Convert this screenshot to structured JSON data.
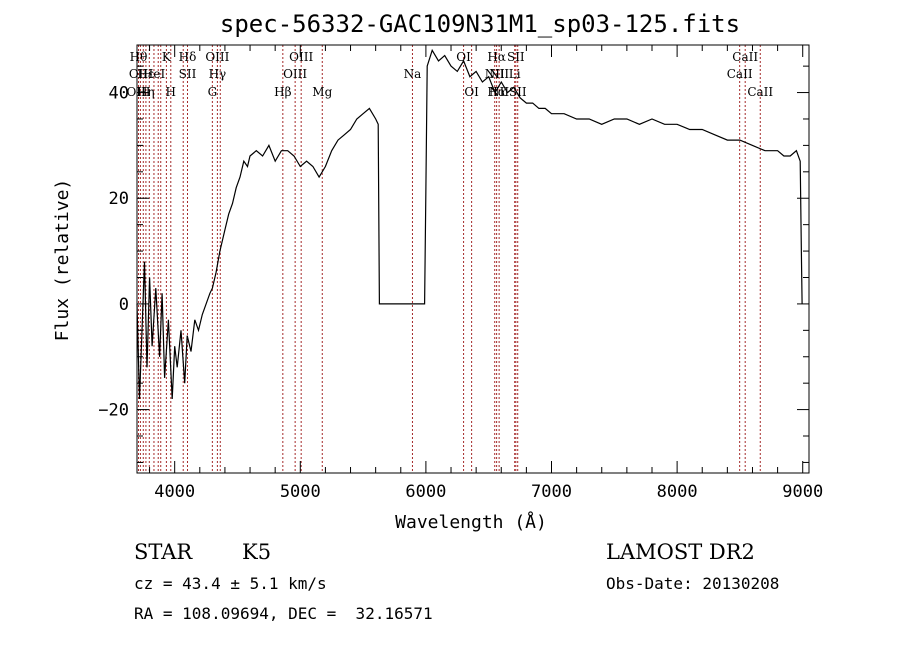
{
  "header": {
    "title": "spec-56332-GAC109N31M1_sp03-125.fits"
  },
  "info": {
    "class": "STAR",
    "subclass": "K5",
    "survey": "LAMOST DR2",
    "cz": "cz = 43.4 ± 5.1 km/s",
    "obs_date": "Obs-Date: 20130208",
    "coords": "RA = 108.09694, DEC =  32.16571"
  },
  "colors": {
    "spectrum": "#000000",
    "line_markers": "#a52a2a",
    "axes": "#000000"
  },
  "chart_data": {
    "type": "line",
    "title": "spec-56332-GAC109N31M1_sp03-125.fits",
    "xlabel": "Wavelength (Å)",
    "ylabel": "Flux (relative)",
    "xlim": [
      3700,
      9050
    ],
    "ylim": [
      -32,
      49
    ],
    "xticks": [
      4000,
      5000,
      6000,
      7000,
      8000,
      9000
    ],
    "yticks": [
      -20,
      0,
      20,
      40
    ],
    "series": [
      {
        "points": [
          [
            3700,
            0
          ],
          [
            3720,
            -18
          ],
          [
            3740,
            -5
          ],
          [
            3760,
            8
          ],
          [
            3780,
            -12
          ],
          [
            3800,
            5
          ],
          [
            3820,
            -8
          ],
          [
            3850,
            3
          ],
          [
            3880,
            -10
          ],
          [
            3900,
            2
          ],
          [
            3920,
            -14
          ],
          [
            3950,
            -3
          ],
          [
            3980,
            -18
          ],
          [
            4000,
            -8
          ],
          [
            4020,
            -12
          ],
          [
            4050,
            -5
          ],
          [
            4080,
            -15
          ],
          [
            4100,
            -6
          ],
          [
            4130,
            -9
          ],
          [
            4160,
            -3
          ],
          [
            4190,
            -5
          ],
          [
            4220,
            -2
          ],
          [
            4250,
            0
          ],
          [
            4280,
            2
          ],
          [
            4300,
            3
          ],
          [
            4330,
            6
          ],
          [
            4360,
            10
          ],
          [
            4400,
            14
          ],
          [
            4430,
            17
          ],
          [
            4460,
            19
          ],
          [
            4490,
            22
          ],
          [
            4520,
            24
          ],
          [
            4550,
            27
          ],
          [
            4580,
            26
          ],
          [
            4600,
            28
          ],
          [
            4650,
            29
          ],
          [
            4700,
            28
          ],
          [
            4750,
            30
          ],
          [
            4800,
            27
          ],
          [
            4850,
            29
          ],
          [
            4900,
            29
          ],
          [
            4950,
            28
          ],
          [
            5000,
            26
          ],
          [
            5050,
            27
          ],
          [
            5100,
            26
          ],
          [
            5150,
            24
          ],
          [
            5200,
            26
          ],
          [
            5250,
            29
          ],
          [
            5300,
            31
          ],
          [
            5350,
            32
          ],
          [
            5400,
            33
          ],
          [
            5450,
            35
          ],
          [
            5500,
            36
          ],
          [
            5550,
            37
          ],
          [
            5600,
            35
          ],
          [
            5620,
            34
          ],
          [
            5630,
            0
          ],
          [
            5700,
            0
          ],
          [
            5800,
            0
          ],
          [
            5900,
            0
          ],
          [
            5990,
            0
          ],
          [
            6000,
            22
          ],
          [
            6010,
            45
          ],
          [
            6050,
            48
          ],
          [
            6100,
            46
          ],
          [
            6150,
            47
          ],
          [
            6200,
            45
          ],
          [
            6250,
            44
          ],
          [
            6300,
            46
          ],
          [
            6350,
            43
          ],
          [
            6400,
            44
          ],
          [
            6450,
            42
          ],
          [
            6500,
            43
          ],
          [
            6550,
            40
          ],
          [
            6600,
            42
          ],
          [
            6650,
            40
          ],
          [
            6700,
            41
          ],
          [
            6750,
            39
          ],
          [
            6800,
            38
          ],
          [
            6850,
            38
          ],
          [
            6900,
            37
          ],
          [
            6950,
            37
          ],
          [
            7000,
            36
          ],
          [
            7100,
            36
          ],
          [
            7200,
            35
          ],
          [
            7300,
            35
          ],
          [
            7400,
            34
          ],
          [
            7500,
            35
          ],
          [
            7600,
            35
          ],
          [
            7700,
            34
          ],
          [
            7800,
            35
          ],
          [
            7900,
            34
          ],
          [
            8000,
            34
          ],
          [
            8100,
            33
          ],
          [
            8200,
            33
          ],
          [
            8300,
            32
          ],
          [
            8400,
            31
          ],
          [
            8500,
            31
          ],
          [
            8600,
            30
          ],
          [
            8700,
            29
          ],
          [
            8800,
            29
          ],
          [
            8850,
            28
          ],
          [
            8900,
            28
          ],
          [
            8950,
            29
          ],
          [
            8980,
            27
          ],
          [
            8990,
            8
          ],
          [
            8995,
            0
          ]
        ]
      }
    ],
    "line_labels": [
      {
        "x": 3712,
        "rows": [
          "Hθ",
          "OII",
          "OIII"
        ]
      },
      {
        "x": 3770,
        "rows": [
          "",
          "Hε",
          "Hη"
        ]
      },
      {
        "x": 3836,
        "rows": [
          "",
          "HeI",
          ""
        ]
      },
      {
        "x": 3890,
        "rows": [
          "",
          "",
          ""
        ]
      },
      {
        "x": 3934,
        "rows": [
          "K",
          "",
          ""
        ]
      },
      {
        "x": 3969,
        "rows": [
          "",
          "",
          "H"
        ]
      },
      {
        "x": 4102,
        "rows": [
          "Hδ",
          "SII",
          ""
        ]
      },
      {
        "x": 4300,
        "rows": [
          "",
          "",
          "G"
        ]
      },
      {
        "x": 4340,
        "rows": [
          "OIII",
          "Hγ",
          ""
        ]
      },
      {
        "x": 4861,
        "rows": [
          "",
          "",
          "Hβ"
        ]
      },
      {
        "x": 4959,
        "rows": [
          "",
          "OIII",
          ""
        ]
      },
      {
        "x": 5007,
        "rows": [
          "OIII",
          "",
          ""
        ]
      },
      {
        "x": 5175,
        "rows": [
          "",
          "",
          "Mg"
        ]
      },
      {
        "x": 5893,
        "rows": [
          "",
          "Na",
          ""
        ]
      },
      {
        "x": 6300,
        "rows": [
          "OI",
          "",
          ""
        ]
      },
      {
        "x": 6364,
        "rows": [
          "",
          "",
          "OI"
        ]
      },
      {
        "x": 6548,
        "rows": [
          "",
          "NII",
          ""
        ]
      },
      {
        "x": 6563,
        "rows": [
          "Hα",
          "",
          "Hα"
        ]
      },
      {
        "x": 6583,
        "rows": [
          "",
          "NII",
          "NII"
        ]
      },
      {
        "x": 6716,
        "rows": [
          "SII",
          "",
          ""
        ]
      },
      {
        "x": 6707,
        "rows": [
          "",
          "Li",
          ""
        ]
      },
      {
        "x": 6731,
        "rows": [
          "",
          "",
          "SII"
        ]
      },
      {
        "x": 8498,
        "rows": [
          "",
          "CaII",
          ""
        ]
      },
      {
        "x": 8542,
        "rows": [
          "CaII",
          "",
          ""
        ]
      },
      {
        "x": 8662,
        "rows": [
          "",
          "",
          "CaII"
        ]
      }
    ],
    "marker_lines": [
      3712,
      3727,
      3750,
      3771,
      3798,
      3835,
      3869,
      3889,
      3934,
      3969,
      4068,
      4102,
      4300,
      4340,
      4363,
      4861,
      4959,
      5007,
      5175,
      5893,
      6300,
      6364,
      6548,
      6563,
      6583,
      6707,
      6716,
      6731,
      8498,
      8542,
      8662
    ],
    "grid": false,
    "legend": "none"
  }
}
